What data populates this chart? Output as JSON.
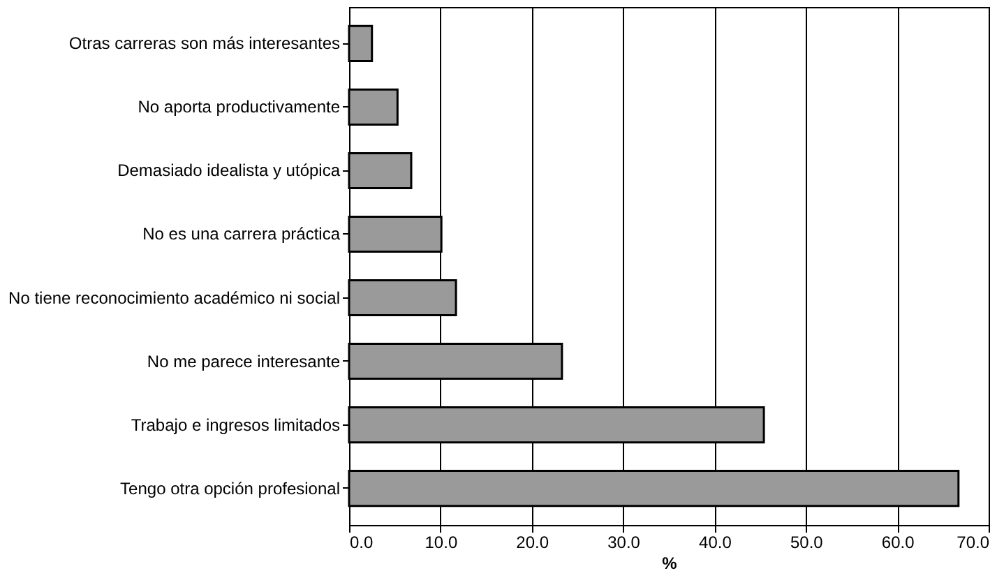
{
  "chart_data": {
    "type": "bar",
    "orientation": "horizontal",
    "xlabel": "%",
    "categories": [
      "Otras carreras son más interesantes",
      "No aporta productivamente",
      "Demasiado idealista y utópica",
      "No es una carrera práctica",
      "No tiene reconocimiento académico ni social",
      "No me parece interesante",
      "Trabajo e ingresos limitados",
      "Tengo otra opción profesional"
    ],
    "values": [
      2.5,
      5.3,
      6.8,
      10.1,
      11.7,
      23.3,
      45.4,
      66.7
    ],
    "color": "#9a9a9a",
    "xlim": [
      0,
      70
    ],
    "xticks": [
      {
        "value": 0,
        "label": "0.0"
      },
      {
        "value": 10,
        "label": "10.0"
      },
      {
        "value": 20,
        "label": "20.0"
      },
      {
        "value": 30,
        "label": "30.0"
      },
      {
        "value": 40,
        "label": "40.0"
      },
      {
        "value": 50,
        "label": "50.0"
      },
      {
        "value": 60,
        "label": "60.0"
      },
      {
        "value": 70,
        "label": "70.0"
      }
    ],
    "grid": "x"
  }
}
